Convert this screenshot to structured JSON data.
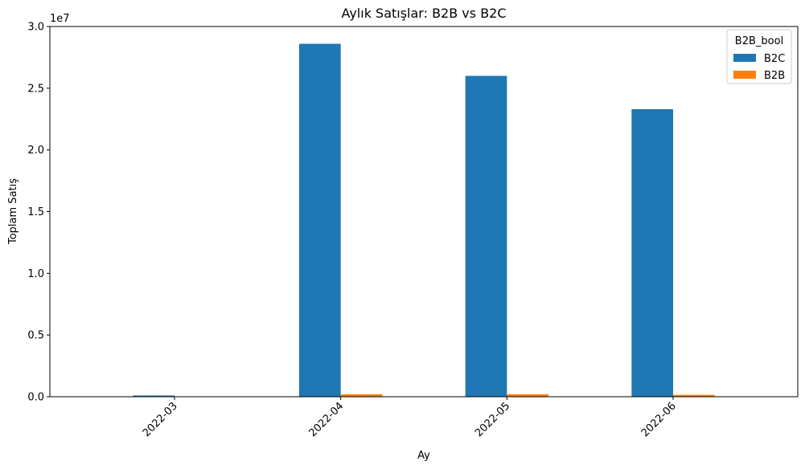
{
  "chart_data": {
    "type": "bar",
    "title": "Aylık Satışlar: B2B vs B2C",
    "xlabel": "Ay",
    "ylabel": "Toplam Satış",
    "offset_label": "1e7",
    "categories": [
      "2022-03",
      "2022-04",
      "2022-05",
      "2022-06"
    ],
    "series": [
      {
        "name": "B2C",
        "color": "#1f77b4",
        "values": [
          100000,
          28600000,
          26000000,
          23300000
        ]
      },
      {
        "name": "B2B",
        "color": "#ff7f0e",
        "values": [
          5000,
          200000,
          200000,
          150000
        ]
      }
    ],
    "ylim": [
      0,
      30000000
    ],
    "yticks": [
      {
        "value": 0,
        "label": "0.0"
      },
      {
        "value": 5000000,
        "label": "0.5"
      },
      {
        "value": 10000000,
        "label": "1.0"
      },
      {
        "value": 15000000,
        "label": "1.5"
      },
      {
        "value": 20000000,
        "label": "2.0"
      },
      {
        "value": 25000000,
        "label": "2.5"
      },
      {
        "value": 30000000,
        "label": "3.0"
      }
    ],
    "legend": {
      "title": "B2B_bool",
      "position": "top-right"
    },
    "grid": false
  }
}
